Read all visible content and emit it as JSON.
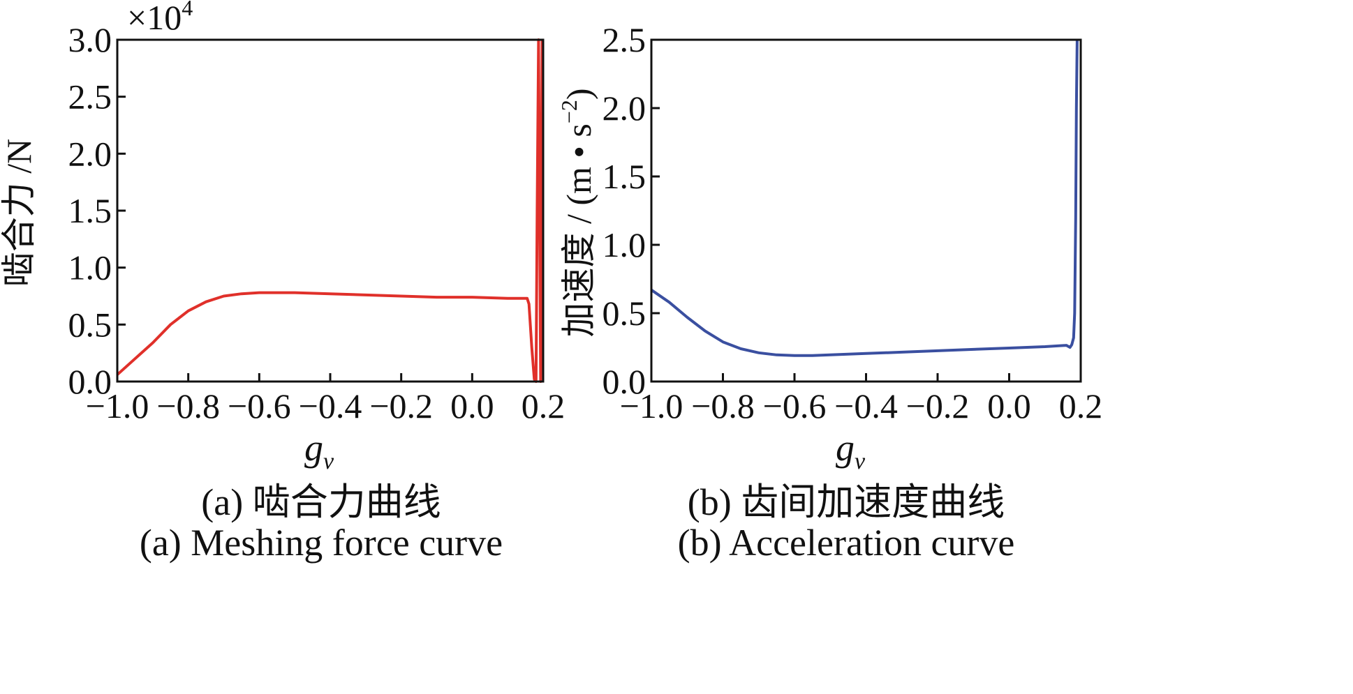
{
  "chart_data": [
    {
      "type": "line",
      "x_tick_labels": [
        "−1.0",
        "−0.8",
        "−0.6",
        "−0.4",
        "−0.2",
        "0.0",
        "0.2"
      ],
      "y_tick_labels": [
        "0.0",
        "0.5",
        "1.0",
        "1.5",
        "2.0",
        "2.5",
        "3.0"
      ],
      "multiplier_label": "×10",
      "multiplier_exponent": "4",
      "xlabel": "g",
      "xlabel_sub": "v",
      "ylabel": "啮合力 /N",
      "xlim": [
        -1.0,
        0.2
      ],
      "ylim": [
        0,
        3.0
      ],
      "grid": false,
      "color": "#e0302a",
      "caption_zh": "(a) 啮合力曲线",
      "caption_en": "(a) Meshing force curve",
      "series": [
        {
          "x": [
            -1.0,
            -0.95,
            -0.9,
            -0.85,
            -0.8,
            -0.75,
            -0.7,
            -0.65,
            -0.6,
            -0.5,
            -0.4,
            -0.3,
            -0.2,
            -0.1,
            0.0,
            0.1,
            0.155,
            0.16,
            0.168,
            0.175,
            0.18,
            0.183,
            0.187,
            0.19,
            0.193,
            0.197
          ],
          "y": [
            0.06,
            0.2,
            0.34,
            0.5,
            0.62,
            0.7,
            0.75,
            0.77,
            0.78,
            0.78,
            0.77,
            0.76,
            0.75,
            0.74,
            0.74,
            0.73,
            0.73,
            0.68,
            0.3,
            0.02,
            0.0,
            1.5,
            3.0,
            1.5,
            0.0,
            3.0
          ]
        }
      ]
    },
    {
      "type": "line",
      "x_tick_labels": [
        "−1.0",
        "−0.8",
        "−0.6",
        "−0.4",
        "−0.2",
        "0.0",
        "0.2"
      ],
      "y_tick_labels": [
        "0.0",
        "0.5",
        "1.0",
        "1.5",
        "2.0",
        "2.5"
      ],
      "xlabel": "g",
      "xlabel_sub": "v",
      "ylabel": "加速度 / (m • s",
      "ylabel_sup": "−2",
      "ylabel_close": ")",
      "xlim": [
        -1.0,
        0.2
      ],
      "ylim": [
        0,
        2.5
      ],
      "grid": false,
      "color": "#3a4fa0",
      "caption_zh": "(b) 齿间加速度曲线",
      "caption_en": "(b) Acceleration curve",
      "series": [
        {
          "x": [
            -1.0,
            -0.95,
            -0.9,
            -0.85,
            -0.8,
            -0.75,
            -0.7,
            -0.65,
            -0.6,
            -0.55,
            -0.5,
            -0.4,
            -0.3,
            -0.2,
            -0.1,
            0.0,
            0.1,
            0.16,
            0.17,
            0.175,
            0.18,
            0.183,
            0.186,
            0.188,
            0.19
          ],
          "y": [
            0.67,
            0.58,
            0.47,
            0.37,
            0.29,
            0.24,
            0.21,
            0.195,
            0.19,
            0.19,
            0.195,
            0.205,
            0.215,
            0.225,
            0.235,
            0.245,
            0.255,
            0.265,
            0.25,
            0.27,
            0.32,
            0.5,
            1.2,
            2.0,
            2.5
          ]
        }
      ]
    }
  ]
}
